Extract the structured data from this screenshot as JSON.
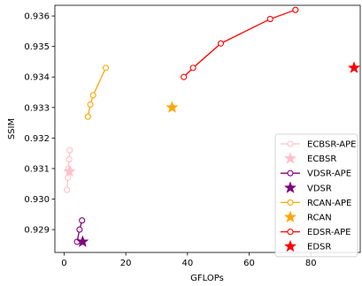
{
  "chart_data": {
    "type": "scatter",
    "xlabel": "GFLOPs",
    "ylabel": "SSIM",
    "xlim": [
      -3,
      96
    ],
    "ylim": [
      0.92825,
      0.93635
    ],
    "xticks": [
      0,
      20,
      40,
      60,
      80
    ],
    "yticks": [
      0.929,
      0.93,
      0.931,
      0.932,
      0.933,
      0.934,
      0.935,
      0.936
    ],
    "xtick_labels": [
      "0",
      "20",
      "40",
      "60",
      "80"
    ],
    "ytick_labels": [
      "0.929",
      "0.930",
      "0.931",
      "0.932",
      "0.933",
      "0.934",
      "0.935",
      "0.936"
    ],
    "legend_position": "lower-right",
    "grid": false,
    "series": [
      {
        "name": "ECBSR-APE",
        "kind": "line",
        "color": "#ffc0cb",
        "x": [
          0.9,
          1.2,
          1.4,
          1.6,
          1.8
        ],
        "y": [
          0.9303,
          0.9307,
          0.931,
          0.9313,
          0.9316
        ]
      },
      {
        "name": "ECBSR",
        "kind": "star",
        "color": "#ffc0cb",
        "x": [
          1.7
        ],
        "y": [
          0.9309
        ]
      },
      {
        "name": "VDSR-APE",
        "kind": "line",
        "color": "#800080",
        "x": [
          4.2,
          5.0,
          5.8
        ],
        "y": [
          0.9286,
          0.929,
          0.9293
        ]
      },
      {
        "name": "VDSR",
        "kind": "star",
        "color": "#800080",
        "x": [
          6.0
        ],
        "y": [
          0.9286
        ]
      },
      {
        "name": "RCAN-APE",
        "kind": "line",
        "color": "#ffa500",
        "x": [
          7.7,
          8.5,
          9.4,
          13.5
        ],
        "y": [
          0.9327,
          0.9331,
          0.9334,
          0.9343
        ]
      },
      {
        "name": "RCAN",
        "kind": "star",
        "color": "#ffa500",
        "x": [
          35.0
        ],
        "y": [
          0.933
        ]
      },
      {
        "name": "EDSR-APE",
        "kind": "line",
        "color": "#ff0000",
        "x": [
          38.8,
          41.8,
          50.8,
          66.8,
          75.0
        ],
        "y": [
          0.934,
          0.9343,
          0.9351,
          0.9359,
          0.9362
        ]
      },
      {
        "name": "EDSR",
        "kind": "star",
        "color": "#ff0000",
        "x": [
          94.0
        ],
        "y": [
          0.9343
        ]
      }
    ]
  }
}
